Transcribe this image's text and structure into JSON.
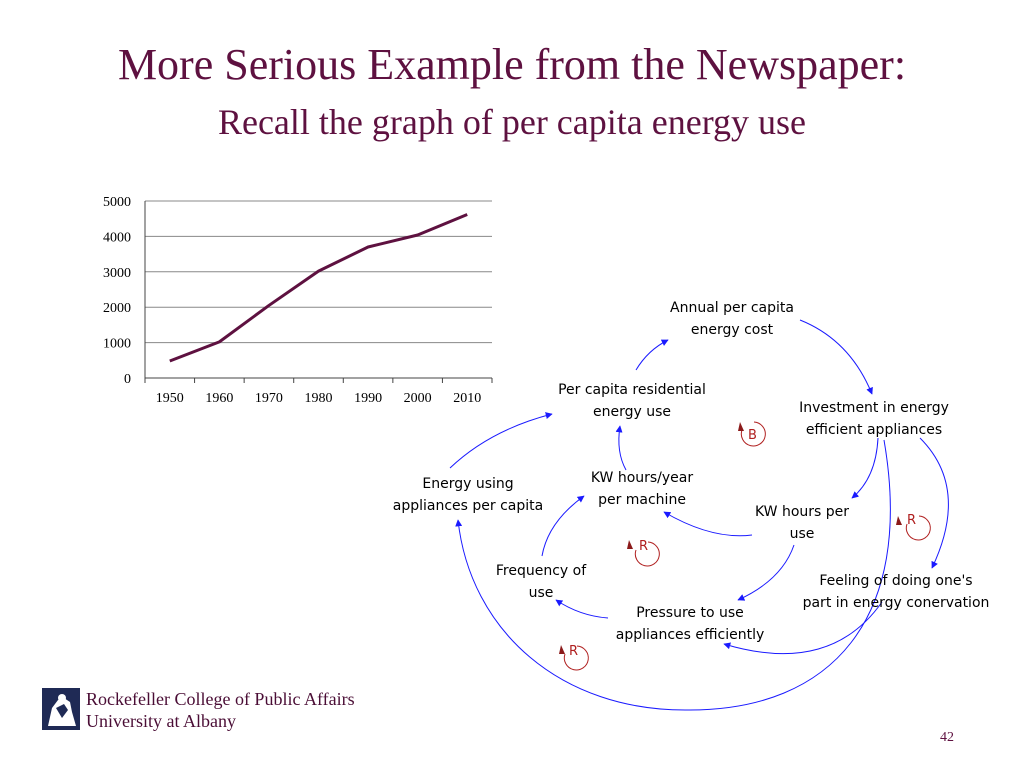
{
  "slide": {
    "title": "More Serious Example from the Newspaper:",
    "subtitle": "Recall the graph of per capita energy use",
    "page_number": "42"
  },
  "footer": {
    "line1": "Rockefeller College of Public Affairs",
    "line2": "University at Albany"
  },
  "chart_data": {
    "type": "line",
    "x": [
      "1950",
      "1960",
      "1970",
      "1980",
      "1990",
      "2000",
      "2010"
    ],
    "series": [
      {
        "values": [
          480,
          1020,
          2050,
          3020,
          3700,
          4040,
          4620
        ]
      }
    ],
    "yticks": [
      "0",
      "1000",
      "2000",
      "3000",
      "4000",
      "5000"
    ],
    "ylim": [
      0,
      5000
    ],
    "grid": true,
    "line_color": "#5e1140"
  },
  "diagram": {
    "nodes": {
      "annual_cost": [
        "Annual per capita",
        "energy cost"
      ],
      "residential_use": [
        "Per capita residential",
        "energy use"
      ],
      "investment": [
        "Investment in energy",
        "efficient appliances"
      ],
      "kwh_machine": [
        "KW hours/year",
        "per machine"
      ],
      "appliances": [
        "Energy using",
        "appliances per capita"
      ],
      "kwh_use": [
        "KW hours per",
        "use"
      ],
      "frequency": [
        "Frequency of",
        "use"
      ],
      "feeling": [
        "Feeling of doing one's",
        "part in energy conervation"
      ],
      "pressure": [
        "Pressure to use",
        "appliances efficiently"
      ]
    },
    "loops": {
      "b1": "B",
      "r1": "R",
      "r2": "R",
      "r3": "R"
    },
    "arrow_color": "#1a1aff",
    "loop_color": "#b02020"
  }
}
